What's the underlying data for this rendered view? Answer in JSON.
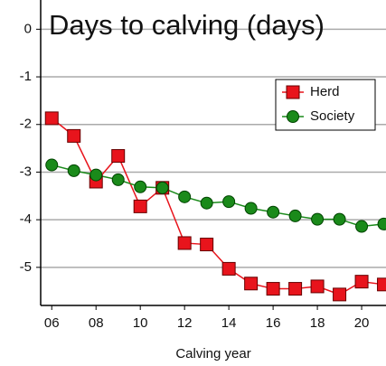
{
  "chart_data": {
    "type": "line",
    "title": "Days to calving (days)",
    "xlabel": "Calving year",
    "x": [
      6,
      7,
      8,
      9,
      10,
      11,
      12,
      13,
      14,
      15,
      16,
      17,
      18,
      19,
      20,
      21
    ],
    "series": [
      {
        "name": "Herd",
        "color": "#e8141c",
        "marker": "square",
        "values": [
          -1.87,
          -2.24,
          -3.2,
          -2.66,
          -3.72,
          -3.33,
          -4.49,
          -4.52,
          -5.03,
          -5.34,
          -5.45,
          -5.45,
          -5.4,
          -5.57,
          -5.3,
          -5.36
        ]
      },
      {
        "name": "Society",
        "color": "#1a8a1a",
        "marker": "circle",
        "values": [
          -2.85,
          -2.97,
          -3.06,
          -3.16,
          -3.31,
          -3.33,
          -3.52,
          -3.65,
          -3.62,
          -3.76,
          -3.84,
          -3.92,
          -3.99,
          -3.99,
          -4.14,
          -4.09
        ]
      }
    ],
    "xlim": [
      5.5,
      21.1
    ],
    "xticks": [
      {
        "value": 6,
        "label": "06"
      },
      {
        "value": 8,
        "label": "08"
      },
      10,
      12,
      14,
      16,
      18,
      20
    ],
    "ylim": [
      -5.8,
      0.5
    ],
    "yticks": [
      0,
      -1,
      -2,
      -3,
      -4,
      -5
    ],
    "grid": true,
    "legend": "upper right"
  }
}
